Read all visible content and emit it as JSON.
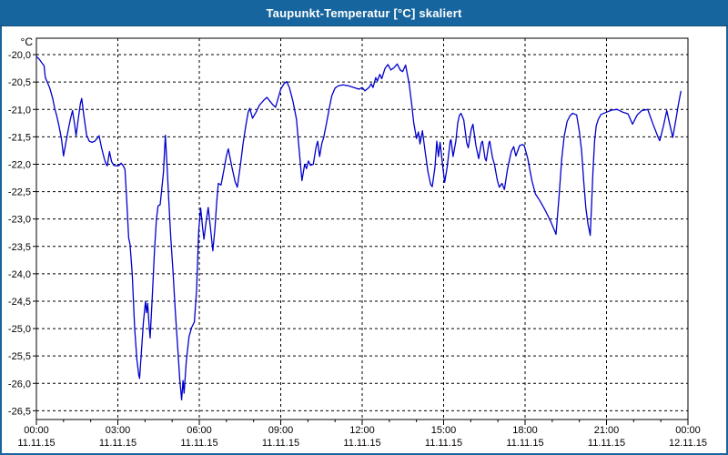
{
  "window": {
    "title": "Taupunkt-Temperatur [°C] skaliert"
  },
  "colors": {
    "titlebar_bg": "#17659E",
    "titlebar_text": "#FFFFFF",
    "window_border": "#17659E",
    "plot_bg": "#FFFFFF",
    "plot_border": "#000000",
    "grid": "#000000",
    "axis_text": "#000000",
    "line": "#0000CC"
  },
  "chart_data": {
    "type": "line",
    "title": "Taupunkt-Temperatur [°C] skaliert",
    "unit": "°C",
    "legend": "none",
    "grid_style": "dashed",
    "xlim_hours": [
      0,
      24
    ],
    "ylim": [
      -26.66,
      -19.7
    ],
    "x_axis": {
      "major_step_hours": 3,
      "minor_step_hours": 1,
      "tick_labels": [
        {
          "time": "00:00",
          "date": "11.11.15"
        },
        {
          "time": "03:00",
          "date": "11.11.15"
        },
        {
          "time": "06:00",
          "date": "11.11.15"
        },
        {
          "time": "09:00",
          "date": "11.11.15"
        },
        {
          "time": "12:00",
          "date": "11.11.15"
        },
        {
          "time": "15:00",
          "date": "11.11.15"
        },
        {
          "time": "18:00",
          "date": "11.11.15"
        },
        {
          "time": "21:00",
          "date": "11.11.15"
        },
        {
          "time": "00:00",
          "date": "12.11.15"
        }
      ]
    },
    "y_axis": {
      "tick_values": [
        -20.0,
        -20.5,
        -21.0,
        -21.5,
        -22.0,
        -22.5,
        -23.0,
        -23.5,
        -24.0,
        -24.5,
        -25.0,
        -25.5,
        -26.0,
        -26.5
      ],
      "tick_labels": [
        "-20,0",
        "-20,5",
        "-21,0",
        "-21,5",
        "-22,0",
        "-22,5",
        "-23,0",
        "-23,5",
        "-24,0",
        "-24,5",
        "-25,0",
        "-25,5",
        "-26,0",
        "-26,5"
      ]
    },
    "series": [
      {
        "name": "Taupunkt-Temperatur",
        "color": "#0000CC",
        "points": [
          [
            0.0,
            -20.03
          ],
          [
            0.1,
            -20.08
          ],
          [
            0.2,
            -20.15
          ],
          [
            0.28,
            -20.2
          ],
          [
            0.33,
            -20.42
          ],
          [
            0.42,
            -20.52
          ],
          [
            0.5,
            -20.62
          ],
          [
            0.6,
            -20.8
          ],
          [
            0.67,
            -20.97
          ],
          [
            0.75,
            -21.12
          ],
          [
            0.83,
            -21.3
          ],
          [
            0.92,
            -21.52
          ],
          [
            1.0,
            -21.85
          ],
          [
            1.08,
            -21.62
          ],
          [
            1.17,
            -21.38
          ],
          [
            1.25,
            -21.18
          ],
          [
            1.33,
            -21.02
          ],
          [
            1.4,
            -21.25
          ],
          [
            1.46,
            -21.48
          ],
          [
            1.55,
            -21.15
          ],
          [
            1.62,
            -20.9
          ],
          [
            1.67,
            -20.8
          ],
          [
            1.75,
            -21.12
          ],
          [
            1.85,
            -21.47
          ],
          [
            1.95,
            -21.58
          ],
          [
            2.05,
            -21.6
          ],
          [
            2.15,
            -21.58
          ],
          [
            2.25,
            -21.52
          ],
          [
            2.31,
            -21.48
          ],
          [
            2.4,
            -21.7
          ],
          [
            2.5,
            -21.9
          ],
          [
            2.57,
            -22.0
          ],
          [
            2.61,
            -22.03
          ],
          [
            2.69,
            -21.77
          ],
          [
            2.77,
            -21.95
          ],
          [
            2.85,
            -22.02
          ],
          [
            2.95,
            -22.03
          ],
          [
            3.05,
            -22.02
          ],
          [
            3.12,
            -21.98
          ],
          [
            3.2,
            -22.03
          ],
          [
            3.26,
            -22.09
          ],
          [
            3.32,
            -22.58
          ],
          [
            3.4,
            -23.35
          ],
          [
            3.45,
            -23.46
          ],
          [
            3.53,
            -24.0
          ],
          [
            3.62,
            -25.0
          ],
          [
            3.7,
            -25.56
          ],
          [
            3.77,
            -25.85
          ],
          [
            3.8,
            -25.91
          ],
          [
            3.87,
            -25.4
          ],
          [
            3.94,
            -24.9
          ],
          [
            4.02,
            -24.5
          ],
          [
            4.06,
            -24.71
          ],
          [
            4.1,
            -24.54
          ],
          [
            4.15,
            -24.93
          ],
          [
            4.19,
            -25.17
          ],
          [
            4.27,
            -24.4
          ],
          [
            4.35,
            -23.57
          ],
          [
            4.42,
            -23.0
          ],
          [
            4.48,
            -22.76
          ],
          [
            4.56,
            -22.74
          ],
          [
            4.62,
            -22.45
          ],
          [
            4.68,
            -22.15
          ],
          [
            4.75,
            -21.47
          ],
          [
            4.82,
            -22.1
          ],
          [
            4.88,
            -22.7
          ],
          [
            4.95,
            -23.35
          ],
          [
            5.03,
            -23.95
          ],
          [
            5.12,
            -24.7
          ],
          [
            5.2,
            -25.3
          ],
          [
            5.28,
            -25.92
          ],
          [
            5.35,
            -26.3
          ],
          [
            5.4,
            -25.95
          ],
          [
            5.44,
            -26.18
          ],
          [
            5.52,
            -25.6
          ],
          [
            5.62,
            -25.15
          ],
          [
            5.72,
            -24.98
          ],
          [
            5.82,
            -24.88
          ],
          [
            5.9,
            -24.3
          ],
          [
            5.98,
            -23.2
          ],
          [
            6.05,
            -22.8
          ],
          [
            6.12,
            -23.15
          ],
          [
            6.17,
            -23.37
          ],
          [
            6.25,
            -23.05
          ],
          [
            6.33,
            -22.79
          ],
          [
            6.42,
            -23.2
          ],
          [
            6.5,
            -23.58
          ],
          [
            6.58,
            -23.15
          ],
          [
            6.64,
            -22.7
          ],
          [
            6.7,
            -22.35
          ],
          [
            6.8,
            -22.38
          ],
          [
            6.91,
            -22.1
          ],
          [
            7.0,
            -21.85
          ],
          [
            7.07,
            -21.72
          ],
          [
            7.2,
            -22.05
          ],
          [
            7.32,
            -22.32
          ],
          [
            7.4,
            -22.42
          ],
          [
            7.52,
            -22.0
          ],
          [
            7.62,
            -21.6
          ],
          [
            7.72,
            -21.28
          ],
          [
            7.8,
            -21.05
          ],
          [
            7.86,
            -20.98
          ],
          [
            7.96,
            -21.16
          ],
          [
            8.09,
            -21.05
          ],
          [
            8.22,
            -20.92
          ],
          [
            8.38,
            -20.83
          ],
          [
            8.49,
            -20.78
          ],
          [
            8.6,
            -20.85
          ],
          [
            8.72,
            -20.92
          ],
          [
            8.81,
            -20.96
          ],
          [
            9.0,
            -20.63
          ],
          [
            9.12,
            -20.53
          ],
          [
            9.22,
            -20.49
          ],
          [
            9.32,
            -20.6
          ],
          [
            9.45,
            -20.85
          ],
          [
            9.58,
            -21.18
          ],
          [
            9.68,
            -21.75
          ],
          [
            9.78,
            -22.3
          ],
          [
            9.88,
            -22.0
          ],
          [
            9.95,
            -22.08
          ],
          [
            10.02,
            -21.94
          ],
          [
            10.1,
            -22.02
          ],
          [
            10.2,
            -22.0
          ],
          [
            10.3,
            -21.69
          ],
          [
            10.36,
            -21.58
          ],
          [
            10.43,
            -21.86
          ],
          [
            10.52,
            -21.61
          ],
          [
            10.58,
            -21.52
          ],
          [
            10.68,
            -21.27
          ],
          [
            10.78,
            -21.0
          ],
          [
            10.88,
            -20.75
          ],
          [
            11.0,
            -20.61
          ],
          [
            11.12,
            -20.57
          ],
          [
            11.3,
            -20.55
          ],
          [
            11.5,
            -20.57
          ],
          [
            11.7,
            -20.6
          ],
          [
            11.88,
            -20.63
          ],
          [
            12.0,
            -20.6
          ],
          [
            12.1,
            -20.66
          ],
          [
            12.2,
            -20.62
          ],
          [
            12.28,
            -20.58
          ],
          [
            12.33,
            -20.53
          ],
          [
            12.4,
            -20.6
          ],
          [
            12.5,
            -20.42
          ],
          [
            12.56,
            -20.48
          ],
          [
            12.65,
            -20.36
          ],
          [
            12.72,
            -20.44
          ],
          [
            12.84,
            -20.25
          ],
          [
            12.95,
            -20.18
          ],
          [
            13.06,
            -20.28
          ],
          [
            13.17,
            -20.24
          ],
          [
            13.29,
            -20.17
          ],
          [
            13.4,
            -20.28
          ],
          [
            13.49,
            -20.31
          ],
          [
            13.6,
            -20.19
          ],
          [
            13.73,
            -20.53
          ],
          [
            13.82,
            -20.89
          ],
          [
            13.9,
            -21.25
          ],
          [
            14.0,
            -21.53
          ],
          [
            14.07,
            -21.41
          ],
          [
            14.13,
            -21.63
          ],
          [
            14.22,
            -21.39
          ],
          [
            14.32,
            -21.77
          ],
          [
            14.42,
            -22.13
          ],
          [
            14.52,
            -22.37
          ],
          [
            14.58,
            -22.41
          ],
          [
            14.68,
            -22.05
          ],
          [
            14.75,
            -21.58
          ],
          [
            14.81,
            -21.86
          ],
          [
            14.87,
            -21.6
          ],
          [
            14.97,
            -22.05
          ],
          [
            15.04,
            -22.33
          ],
          [
            15.13,
            -22.05
          ],
          [
            15.24,
            -21.58
          ],
          [
            15.27,
            -21.55
          ],
          [
            15.35,
            -21.86
          ],
          [
            15.45,
            -21.58
          ],
          [
            15.52,
            -21.25
          ],
          [
            15.58,
            -21.11
          ],
          [
            15.64,
            -21.07
          ],
          [
            15.74,
            -21.19
          ],
          [
            15.85,
            -21.61
          ],
          [
            15.91,
            -21.7
          ],
          [
            16.02,
            -21.36
          ],
          [
            16.08,
            -21.27
          ],
          [
            16.19,
            -21.66
          ],
          [
            16.29,
            -21.9
          ],
          [
            16.39,
            -21.61
          ],
          [
            16.43,
            -21.58
          ],
          [
            16.53,
            -21.9
          ],
          [
            16.57,
            -21.94
          ],
          [
            16.67,
            -21.61
          ],
          [
            16.7,
            -21.58
          ],
          [
            16.8,
            -21.88
          ],
          [
            16.87,
            -22.0
          ],
          [
            16.98,
            -22.3
          ],
          [
            17.05,
            -22.42
          ],
          [
            17.15,
            -22.35
          ],
          [
            17.24,
            -22.46
          ],
          [
            17.35,
            -22.1
          ],
          [
            17.49,
            -21.77
          ],
          [
            17.58,
            -21.68
          ],
          [
            17.66,
            -21.85
          ],
          [
            17.8,
            -21.66
          ],
          [
            17.9,
            -21.64
          ],
          [
            17.97,
            -21.66
          ],
          [
            18.1,
            -21.9
          ],
          [
            18.25,
            -22.3
          ],
          [
            18.38,
            -22.54
          ],
          [
            18.55,
            -22.67
          ],
          [
            18.75,
            -22.85
          ],
          [
            18.95,
            -23.05
          ],
          [
            19.11,
            -23.24
          ],
          [
            19.14,
            -23.28
          ],
          [
            19.25,
            -22.6
          ],
          [
            19.35,
            -21.9
          ],
          [
            19.44,
            -21.49
          ],
          [
            19.55,
            -21.22
          ],
          [
            19.65,
            -21.12
          ],
          [
            19.75,
            -21.07
          ],
          [
            19.9,
            -21.1
          ],
          [
            20.0,
            -21.41
          ],
          [
            20.08,
            -21.75
          ],
          [
            20.16,
            -22.3
          ],
          [
            20.24,
            -22.8
          ],
          [
            20.32,
            -23.1
          ],
          [
            20.37,
            -23.22
          ],
          [
            20.4,
            -23.3
          ],
          [
            20.45,
            -22.74
          ],
          [
            20.5,
            -22.13
          ],
          [
            20.56,
            -21.58
          ],
          [
            20.62,
            -21.3
          ],
          [
            20.7,
            -21.18
          ],
          [
            20.8,
            -21.09
          ],
          [
            21.0,
            -21.05
          ],
          [
            21.2,
            -21.01
          ],
          [
            21.4,
            -21.0
          ],
          [
            21.6,
            -21.05
          ],
          [
            21.79,
            -21.08
          ],
          [
            21.96,
            -21.27
          ],
          [
            22.13,
            -21.1
          ],
          [
            22.3,
            -21.02
          ],
          [
            22.52,
            -21.0
          ],
          [
            22.7,
            -21.25
          ],
          [
            22.91,
            -21.52
          ],
          [
            22.96,
            -21.57
          ],
          [
            23.1,
            -21.3
          ],
          [
            23.22,
            -21.02
          ],
          [
            23.32,
            -21.25
          ],
          [
            23.44,
            -21.51
          ],
          [
            23.55,
            -21.2
          ],
          [
            23.65,
            -20.9
          ],
          [
            23.74,
            -20.67
          ]
        ]
      }
    ]
  }
}
